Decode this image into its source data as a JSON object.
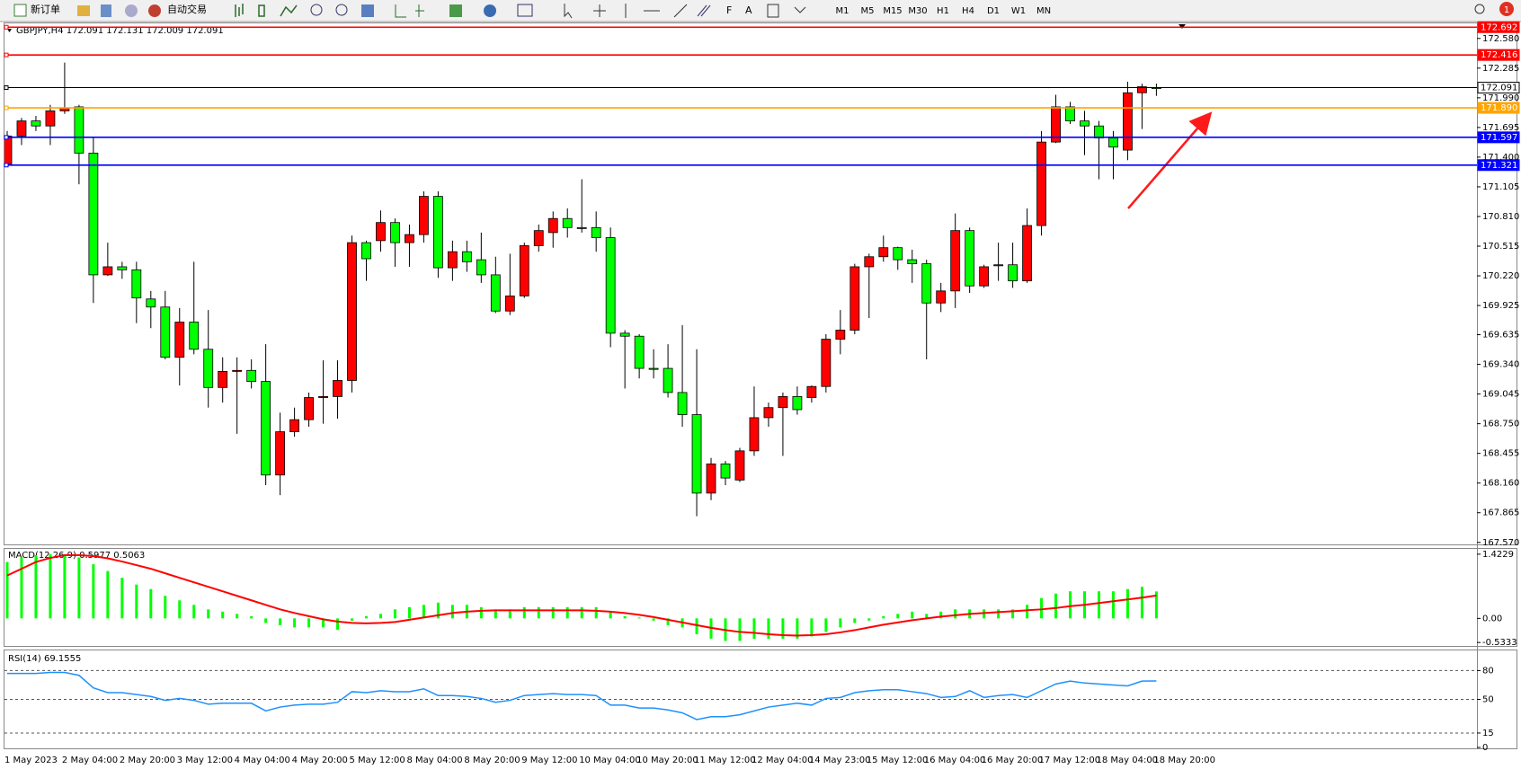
{
  "toolbar": {
    "buttons": [
      "新订单",
      "自动交易"
    ],
    "timeframes": [
      "M1",
      "M5",
      "M15",
      "M30",
      "H1",
      "H4",
      "D1",
      "W1",
      "MN"
    ],
    "notifications": 1
  },
  "chart_data": [
    {
      "type": "candlestick",
      "title": "GBPJPY,H4  172.091 172.131 172.009 172.091",
      "categories": [
        "1 May 2023",
        null,
        null,
        null,
        "2 May 04:00",
        null,
        null,
        null,
        "2 May 20:00",
        null,
        null,
        null,
        "3 May 12:00",
        null,
        null,
        null,
        "4 May 04:00",
        null,
        null,
        null,
        "4 May 20:00",
        null,
        null,
        null,
        "5 May 12:00",
        null,
        null,
        null,
        "8 May 04:00",
        null,
        null,
        null,
        "8 May 20:00",
        null,
        null,
        null,
        "9 May 12:00",
        null,
        null,
        null,
        "10 May 04:00",
        null,
        null,
        null,
        "10 May 20:00",
        null,
        null,
        null,
        "11 May 12:00",
        null,
        null,
        null,
        "12 May 04:00",
        null,
        null,
        null,
        "14 May 23:00",
        null,
        null,
        null,
        "15 May 12:00",
        null,
        null,
        null,
        "16 May 04:00",
        null,
        null,
        null,
        "16 May 20:00",
        null,
        null,
        null,
        "17 May 12:00",
        null,
        null,
        null,
        "18 May 04:00",
        null,
        null,
        null,
        "18 May 20:00"
      ],
      "open": [
        171.33,
        171.61,
        171.76,
        171.71,
        171.86,
        171.9,
        171.44,
        170.23,
        170.31,
        170.28,
        169.99,
        169.91,
        169.41,
        169.76,
        169.49,
        169.11,
        169.27,
        169.28,
        169.17,
        168.24,
        168.67,
        168.79,
        169.01,
        169.02,
        169.18,
        170.55,
        170.57,
        170.75,
        170.55,
        170.63,
        171.01,
        170.3,
        170.46,
        170.38,
        170.23,
        169.87,
        170.02,
        170.52,
        170.65,
        170.79,
        170.7,
        170.7,
        170.6,
        169.65,
        169.62,
        169.3,
        169.3,
        169.06,
        168.84,
        168.06,
        168.35,
        168.19,
        168.48,
        168.81,
        168.91,
        169.02,
        169.01,
        169.12,
        169.59,
        169.68,
        170.31,
        170.41,
        170.5,
        170.38,
        170.34,
        169.95,
        170.07,
        170.67,
        170.12,
        170.32,
        170.33,
        170.17,
        170.72,
        171.55,
        171.9,
        171.76,
        171.71,
        171.59,
        171.47,
        172.04,
        172.091
      ],
      "high": [
        171.66,
        171.79,
        171.81,
        171.92,
        172.34,
        171.92,
        171.6,
        170.55,
        170.36,
        170.36,
        170.07,
        170.07,
        169.9,
        170.36,
        169.88,
        169.41,
        169.41,
        169.39,
        169.54,
        168.86,
        168.91,
        169.06,
        169.38,
        169.38,
        170.62,
        170.57,
        170.87,
        170.79,
        170.73,
        171.06,
        171.06,
        170.57,
        170.57,
        170.65,
        170.41,
        170.44,
        170.55,
        170.73,
        170.86,
        170.89,
        171.18,
        170.86,
        170.7,
        169.68,
        169.64,
        169.49,
        169.54,
        169.73,
        169.49,
        168.41,
        168.38,
        168.51,
        169.12,
        168.96,
        169.06,
        169.12,
        169.13,
        169.64,
        169.88,
        170.34,
        170.44,
        170.62,
        170.51,
        170.48,
        170.38,
        170.15,
        170.84,
        170.7,
        170.33,
        170.55,
        170.55,
        170.89,
        171.66,
        172.02,
        171.95,
        171.86,
        171.76,
        171.66,
        172.15,
        172.13,
        172.131
      ],
      "low": [
        171.31,
        171.52,
        171.66,
        171.52,
        171.83,
        171.13,
        169.95,
        170.22,
        170.19,
        169.75,
        169.7,
        169.39,
        169.13,
        169.44,
        168.91,
        168.96,
        168.65,
        169.1,
        168.14,
        168.04,
        168.62,
        168.72,
        168.75,
        168.8,
        169.06,
        170.17,
        170.46,
        170.31,
        170.31,
        170.55,
        170.2,
        170.17,
        170.26,
        170.15,
        169.85,
        169.83,
        170.0,
        170.46,
        170.5,
        170.6,
        170.65,
        170.46,
        169.51,
        169.1,
        169.2,
        169.2,
        169.01,
        168.72,
        167.83,
        167.99,
        168.14,
        168.17,
        168.43,
        168.72,
        168.43,
        168.84,
        168.96,
        169.06,
        169.44,
        169.64,
        169.8,
        170.36,
        170.28,
        170.15,
        169.39,
        169.86,
        169.9,
        170.05,
        170.1,
        170.17,
        170.1,
        170.15,
        170.62,
        171.54,
        171.73,
        171.42,
        171.18,
        171.18,
        171.37,
        171.68,
        172.009
      ],
      "close": [
        171.61,
        171.76,
        171.71,
        171.86,
        171.89,
        171.44,
        170.23,
        170.31,
        170.28,
        170.0,
        169.91,
        169.41,
        169.76,
        169.49,
        169.11,
        169.27,
        169.28,
        169.17,
        168.24,
        168.67,
        168.79,
        169.01,
        169.02,
        169.18,
        170.55,
        170.39,
        170.75,
        170.55,
        170.63,
        171.01,
        170.3,
        170.46,
        170.36,
        170.23,
        169.87,
        170.02,
        170.52,
        170.67,
        170.79,
        170.7,
        170.69,
        170.6,
        169.65,
        169.62,
        169.3,
        169.29,
        169.06,
        168.84,
        168.06,
        168.35,
        168.21,
        168.48,
        168.81,
        168.91,
        169.02,
        168.89,
        169.12,
        169.59,
        169.68,
        170.31,
        170.41,
        170.5,
        170.38,
        170.34,
        169.95,
        170.07,
        170.67,
        170.12,
        170.31,
        170.33,
        170.17,
        170.72,
        171.55,
        171.9,
        171.76,
        171.71,
        171.59,
        171.5,
        172.04,
        172.1,
        172.091
      ],
      "up_color": "#ff0000",
      "down_color": "#00ff00",
      "ylim": [
        167.55,
        172.73
      ],
      "yticks": [
        {
          "value": 172.58,
          "label": "172.580"
        },
        172.285,
        {
          "value": 171.99,
          "label": "171.990"
        },
        171.695,
        {
          "value": 171.4,
          "label": "171.400"
        },
        171.105,
        {
          "value": 170.81,
          "label": "170.810"
        },
        170.515,
        {
          "value": 170.22,
          "label": "170.220"
        },
        169.925,
        169.635,
        {
          "value": 169.34,
          "label": "169.340"
        },
        169.045,
        {
          "value": 168.75,
          "label": "168.750"
        },
        168.455,
        {
          "value": 168.16,
          "label": "168.160"
        },
        167.865,
        {
          "value": 167.57,
          "label": "167.570"
        }
      ],
      "levels": {
        "values": [
          172.692,
          172.416,
          172.091,
          171.89,
          171.597,
          171.321
        ],
        "value_labels": [
          "172.692",
          "172.416",
          "172.091",
          "171.890",
          "171.597",
          "171.321"
        ],
        "colors": [
          "#ff0000",
          "#ff0000",
          "#000000",
          "#ffa500",
          "#0000ff",
          "#0000ff"
        ]
      }
    },
    {
      "type": "macd",
      "title": "MACD(12,26,9) 0.5977 0.5063",
      "ylim": [
        -0.59,
        1.52
      ],
      "yticks": [
        1.4229,
        {
          "value": 0,
          "label": "0.00"
        },
        -0.5333
      ],
      "series": [
        {
          "style": "bar",
          "color": "#00ff00",
          "values": [
            1.25,
            1.35,
            1.4,
            1.42,
            1.42,
            1.35,
            1.2,
            1.05,
            0.9,
            0.75,
            0.65,
            0.5,
            0.4,
            0.3,
            0.2,
            0.15,
            0.1,
            0.05,
            -0.1,
            -0.15,
            -0.2,
            -0.2,
            -0.2,
            -0.25,
            -0.05,
            0.05,
            0.1,
            0.2,
            0.25,
            0.3,
            0.35,
            0.3,
            0.3,
            0.25,
            0.2,
            0.2,
            0.25,
            0.25,
            0.25,
            0.25,
            0.25,
            0.25,
            0.15,
            0.05,
            0.02,
            -0.05,
            -0.15,
            -0.2,
            -0.35,
            -0.45,
            -0.5,
            -0.5,
            -0.45,
            -0.45,
            -0.45,
            -0.45,
            -0.4,
            -0.3,
            -0.2,
            -0.1,
            -0.05,
            0.05,
            0.1,
            0.15,
            0.1,
            0.15,
            0.2,
            0.2,
            0.2,
            0.2,
            0.2,
            0.3,
            0.45,
            0.55,
            0.6,
            0.6,
            0.6,
            0.6,
            0.65,
            0.7,
            0.5977
          ]
        },
        {
          "style": "line",
          "color": "#ff0000",
          "values": [
            0.95,
            1.1,
            1.25,
            1.34,
            1.4,
            1.4,
            1.38,
            1.33,
            1.26,
            1.18,
            1.1,
            1.0,
            0.9,
            0.8,
            0.7,
            0.6,
            0.5,
            0.4,
            0.3,
            0.2,
            0.12,
            0.05,
            -0.02,
            -0.07,
            -0.1,
            -0.11,
            -0.1,
            -0.08,
            -0.03,
            0.02,
            0.07,
            0.12,
            0.15,
            0.17,
            0.18,
            0.18,
            0.18,
            0.18,
            0.18,
            0.18,
            0.18,
            0.17,
            0.15,
            0.12,
            0.08,
            0.03,
            -0.03,
            -0.09,
            -0.15,
            -0.21,
            -0.26,
            -0.3,
            -0.32,
            -0.35,
            -0.37,
            -0.38,
            -0.37,
            -0.35,
            -0.31,
            -0.26,
            -0.2,
            -0.14,
            -0.09,
            -0.04,
            0.0,
            0.04,
            0.07,
            0.1,
            0.12,
            0.14,
            0.16,
            0.18,
            0.2,
            0.23,
            0.27,
            0.3,
            0.34,
            0.38,
            0.42,
            0.46,
            0.5063
          ]
        }
      ]
    },
    {
      "type": "line",
      "title": "RSI(14) 69.1555",
      "color": "#1e90ff",
      "ylim": [
        0,
        100
      ],
      "yticks": [
        80,
        50,
        15,
        0
      ],
      "levels": [
        80,
        50,
        15
      ],
      "values": [
        77,
        77,
        77,
        78,
        78,
        75,
        62,
        57,
        57,
        55,
        53,
        49,
        51,
        49,
        45,
        46,
        46,
        46,
        38,
        42,
        44,
        45,
        45,
        47,
        58,
        57,
        59,
        58,
        58,
        61,
        54,
        54,
        53,
        51,
        47,
        49,
        54,
        55,
        56,
        55,
        55,
        54,
        44,
        44,
        41,
        41,
        39,
        36,
        29,
        32,
        32,
        34,
        38,
        42,
        44,
        46,
        44,
        51,
        52,
        57,
        59,
        60,
        60,
        58,
        56,
        52,
        53,
        59,
        52,
        54,
        55,
        52,
        59,
        66,
        69,
        67,
        66,
        65,
        64,
        69,
        69.1555
      ]
    }
  ]
}
